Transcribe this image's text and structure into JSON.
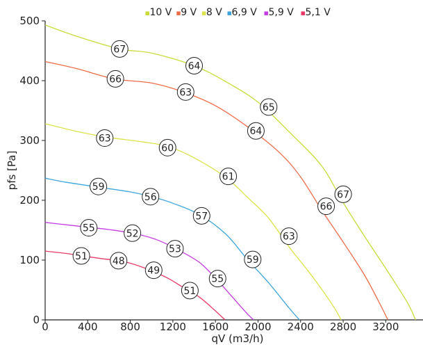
{
  "chart_data": {
    "type": "line",
    "title": "",
    "xlabel": "qV (m3/h)",
    "ylabel": "pfs [Pa]",
    "xlim": [
      0,
      3550
    ],
    "ylim": [
      0,
      500
    ],
    "x_ticks": [
      0,
      400,
      800,
      1200,
      1600,
      2000,
      2400,
      2800,
      3200
    ],
    "y_ticks": [
      0,
      100,
      200,
      300,
      400,
      500
    ],
    "grid": false,
    "legend_position": "top-center",
    "legend_marker": "▪",
    "series": [
      {
        "name": "10 V",
        "color": "#c9db3a",
        "points": [
          [
            0,
            493
          ],
          [
            300,
            474
          ],
          [
            700,
            453
          ],
          [
            1000,
            446
          ],
          [
            1400,
            425
          ],
          [
            1700,
            398
          ],
          [
            2000,
            364
          ],
          [
            2300,
            313
          ],
          [
            2600,
            257
          ],
          [
            2800,
            196
          ],
          [
            3000,
            140
          ],
          [
            3200,
            86
          ],
          [
            3400,
            30
          ],
          [
            3480,
            0
          ]
        ],
        "labels": [
          {
            "text": "67",
            "x": 700,
            "y": 453
          },
          {
            "text": "64",
            "x": 1400,
            "y": 425
          },
          {
            "text": "65",
            "x": 2100,
            "y": 356
          },
          {
            "text": "67",
            "x": 2800,
            "y": 210
          }
        ]
      },
      {
        "name": "9 V",
        "color": "#ef6b47",
        "points": [
          [
            0,
            432
          ],
          [
            300,
            420
          ],
          [
            650,
            403
          ],
          [
            1000,
            396
          ],
          [
            1300,
            381
          ],
          [
            1600,
            358
          ],
          [
            1900,
            323
          ],
          [
            2200,
            280
          ],
          [
            2400,
            239
          ],
          [
            2600,
            183
          ],
          [
            2800,
            130
          ],
          [
            3000,
            75
          ],
          [
            3150,
            25
          ],
          [
            3220,
            0
          ]
        ],
        "labels": [
          {
            "text": "66",
            "x": 660,
            "y": 403
          },
          {
            "text": "63",
            "x": 1320,
            "y": 381
          },
          {
            "text": "64",
            "x": 1980,
            "y": 316
          },
          {
            "text": "66",
            "x": 2640,
            "y": 190
          }
        ]
      },
      {
        "name": "8 V",
        "color": "#dce34a",
        "points": [
          [
            0,
            328
          ],
          [
            300,
            315
          ],
          [
            600,
            305
          ],
          [
            900,
            298
          ],
          [
            1150,
            290
          ],
          [
            1400,
            271
          ],
          [
            1700,
            238
          ],
          [
            1900,
            205
          ],
          [
            2100,
            170
          ],
          [
            2300,
            120
          ],
          [
            2500,
            75
          ],
          [
            2700,
            25
          ],
          [
            2780,
            0
          ]
        ],
        "labels": [
          {
            "text": "63",
            "x": 560,
            "y": 304
          },
          {
            "text": "60",
            "x": 1150,
            "y": 288
          },
          {
            "text": "61",
            "x": 1720,
            "y": 240
          },
          {
            "text": "63",
            "x": 2290,
            "y": 140
          }
        ]
      },
      {
        "name": "6,9 V",
        "color": "#3ea6dc",
        "points": [
          [
            0,
            237
          ],
          [
            200,
            230
          ],
          [
            500,
            222
          ],
          [
            800,
            214
          ],
          [
            1000,
            206
          ],
          [
            1200,
            195
          ],
          [
            1450,
            176
          ],
          [
            1700,
            143
          ],
          [
            1900,
            101
          ],
          [
            2100,
            62
          ],
          [
            2300,
            18
          ],
          [
            2390,
            0
          ]
        ],
        "labels": [
          {
            "text": "59",
            "x": 500,
            "y": 223
          },
          {
            "text": "56",
            "x": 990,
            "y": 206
          },
          {
            "text": "57",
            "x": 1470,
            "y": 174
          },
          {
            "text": "59",
            "x": 1950,
            "y": 101
          }
        ]
      },
      {
        "name": "5,9 V",
        "color": "#c43ce0",
        "points": [
          [
            0,
            163
          ],
          [
            200,
            159
          ],
          [
            400,
            155
          ],
          [
            600,
            151
          ],
          [
            850,
            144
          ],
          [
            1050,
            134
          ],
          [
            1250,
            117
          ],
          [
            1450,
            96
          ],
          [
            1600,
            70
          ],
          [
            1750,
            40
          ],
          [
            1900,
            10
          ],
          [
            1960,
            0
          ]
        ],
        "labels": [
          {
            "text": "55",
            "x": 410,
            "y": 154
          },
          {
            "text": "52",
            "x": 820,
            "y": 145
          },
          {
            "text": "53",
            "x": 1220,
            "y": 119
          },
          {
            "text": "55",
            "x": 1620,
            "y": 69
          }
        ]
      },
      {
        "name": "5,1 V",
        "color": "#e83a66",
        "points": [
          [
            0,
            115
          ],
          [
            200,
            111
          ],
          [
            350,
            107
          ],
          [
            550,
            102
          ],
          [
            700,
            99
          ],
          [
            850,
            92
          ],
          [
            1000,
            82
          ],
          [
            1150,
            70
          ],
          [
            1300,
            54
          ],
          [
            1450,
            38
          ],
          [
            1600,
            15
          ],
          [
            1690,
            0
          ]
        ],
        "labels": [
          {
            "text": "51",
            "x": 340,
            "y": 107
          },
          {
            "text": "48",
            "x": 690,
            "y": 99
          },
          {
            "text": "49",
            "x": 1020,
            "y": 83
          },
          {
            "text": "51",
            "x": 1360,
            "y": 49
          }
        ]
      }
    ]
  }
}
